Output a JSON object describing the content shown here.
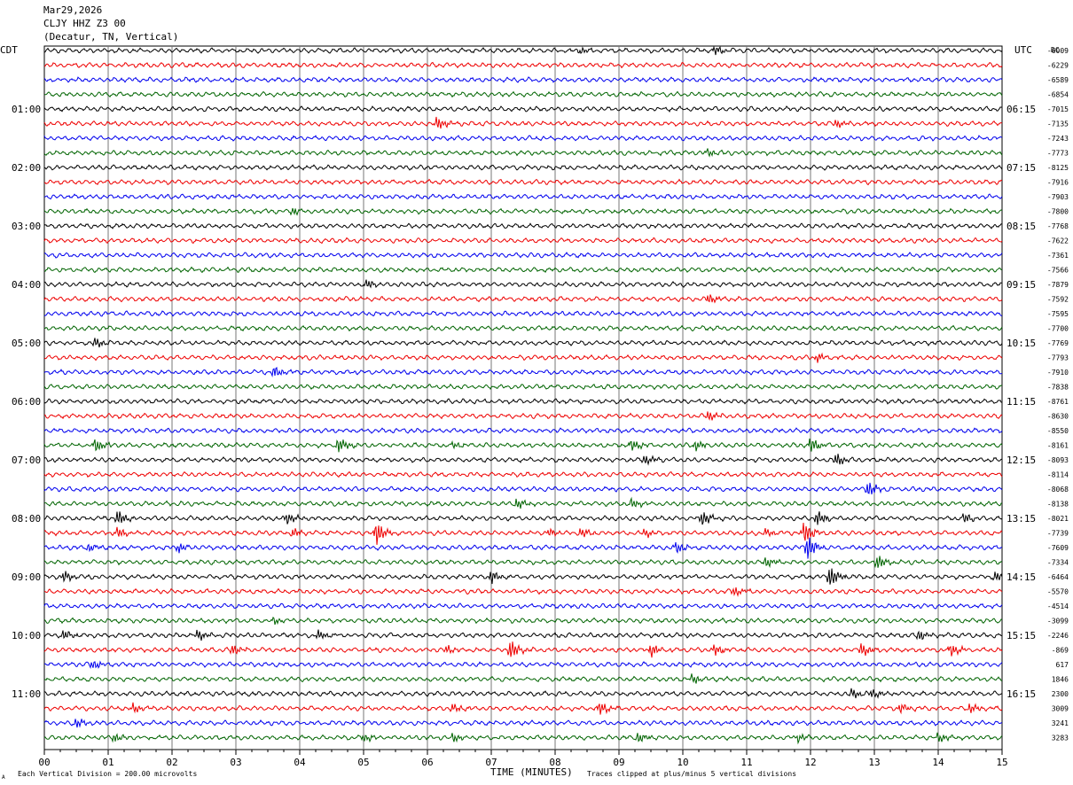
{
  "header": {
    "date": "Mar29,2026",
    "station": "CLJY HHZ Z3 00",
    "location": "(Decatur, TN, Vertical)"
  },
  "left_tz": "CDT",
  "right_tz": "UTC",
  "dc_label": "DC",
  "footer": {
    "scale_note": "Each Vertical Division =  200.00 microvolts",
    "clip_note": "Traces clipped at plus/minus 5 vertical divisions",
    "corner_mark": "A"
  },
  "chart_data": {
    "type": "line",
    "title": "",
    "xlabel": "TIME (MINUTES)",
    "ylabel": "",
    "x_ticks": [
      "00",
      "01",
      "02",
      "03",
      "04",
      "05",
      "06",
      "07",
      "08",
      "09",
      "10",
      "11",
      "12",
      "13",
      "14",
      "15"
    ],
    "xlim": [
      0,
      15
    ],
    "trace_count": 48,
    "trace_interval_minutes": 15,
    "trace_colors": [
      "#000000",
      "#ee0000",
      "#0000ee",
      "#006400"
    ],
    "left_time_labels": [
      "01:00",
      "02:00",
      "03:00",
      "04:00",
      "05:00",
      "06:00",
      "07:00",
      "08:00",
      "09:00",
      "10:00",
      "11:00"
    ],
    "right_time_labels": [
      "06:15",
      "07:15",
      "08:15",
      "09:15",
      "10:15",
      "11:15",
      "12:15",
      "13:15",
      "14:15",
      "15:15",
      "16:15"
    ],
    "dc_offsets": [
      "-6009",
      "-6229",
      "-6589",
      "-6854",
      "-7015",
      "-7135",
      "-7243",
      "-7773",
      "-8125",
      "-7916",
      "-7903",
      "-7800",
      "-7768",
      "-7622",
      "-7361",
      "-7566",
      "-7879",
      "-7592",
      "-7595",
      "-7700",
      "-7769",
      "-7793",
      "-7910",
      "-7838",
      "-8761",
      "-8630",
      "-8550",
      "-8161",
      "-8093",
      "-8114",
      "-8068",
      "-8138",
      "-8021",
      "-7739",
      "-7609",
      "-7334",
      "-6464",
      "-5570",
      "-4514",
      "-3099",
      "-2246",
      "-869",
      "617",
      "1846",
      "2300",
      "3009",
      "3241",
      "3283"
    ],
    "events": [
      {
        "trace": 0,
        "minute": 10.5,
        "amp": 1.2
      },
      {
        "trace": 0,
        "minute": 8.4,
        "amp": 0.8
      },
      {
        "trace": 5,
        "minute": 6.15,
        "amp": 1.8
      },
      {
        "trace": 5,
        "minute": 12.4,
        "amp": 1.2
      },
      {
        "trace": 7,
        "minute": 10.4,
        "amp": 1.0
      },
      {
        "trace": 11,
        "minute": 3.9,
        "amp": 1.0
      },
      {
        "trace": 16,
        "minute": 5.05,
        "amp": 1.2
      },
      {
        "trace": 17,
        "minute": 10.4,
        "amp": 1.4
      },
      {
        "trace": 20,
        "minute": 0.8,
        "amp": 1.4
      },
      {
        "trace": 21,
        "minute": 12.1,
        "amp": 1.2
      },
      {
        "trace": 22,
        "minute": 3.6,
        "amp": 1.6
      },
      {
        "trace": 25,
        "minute": 10.4,
        "amp": 1.4
      },
      {
        "trace": 27,
        "minute": 0.8,
        "amp": 1.8
      },
      {
        "trace": 27,
        "minute": 4.6,
        "amp": 2.0
      },
      {
        "trace": 27,
        "minute": 6.4,
        "amp": 1.0
      },
      {
        "trace": 27,
        "minute": 9.2,
        "amp": 1.4
      },
      {
        "trace": 27,
        "minute": 10.2,
        "amp": 1.4
      },
      {
        "trace": 27,
        "minute": 12.0,
        "amp": 2.0
      },
      {
        "trace": 28,
        "minute": 9.4,
        "amp": 1.4
      },
      {
        "trace": 28,
        "minute": 12.4,
        "amp": 1.8
      },
      {
        "trace": 30,
        "minute": 12.9,
        "amp": 2.2
      },
      {
        "trace": 31,
        "minute": 7.4,
        "amp": 1.4
      },
      {
        "trace": 31,
        "minute": 9.2,
        "amp": 1.4
      },
      {
        "trace": 32,
        "minute": 1.15,
        "amp": 2.0
      },
      {
        "trace": 32,
        "minute": 3.8,
        "amp": 1.6
      },
      {
        "trace": 32,
        "minute": 10.3,
        "amp": 2.0
      },
      {
        "trace": 32,
        "minute": 12.1,
        "amp": 2.0
      },
      {
        "trace": 32,
        "minute": 14.4,
        "amp": 1.2
      },
      {
        "trace": 33,
        "minute": 1.15,
        "amp": 1.4
      },
      {
        "trace": 33,
        "minute": 3.9,
        "amp": 1.2
      },
      {
        "trace": 33,
        "minute": 5.2,
        "amp": 3.2
      },
      {
        "trace": 33,
        "minute": 7.9,
        "amp": 1.0
      },
      {
        "trace": 33,
        "minute": 8.4,
        "amp": 1.2
      },
      {
        "trace": 33,
        "minute": 9.4,
        "amp": 1.2
      },
      {
        "trace": 33,
        "minute": 11.3,
        "amp": 1.0
      },
      {
        "trace": 33,
        "minute": 11.9,
        "amp": 3.0
      },
      {
        "trace": 34,
        "minute": 0.7,
        "amp": 1.2
      },
      {
        "trace": 34,
        "minute": 2.1,
        "amp": 1.4
      },
      {
        "trace": 34,
        "minute": 9.9,
        "amp": 1.6
      },
      {
        "trace": 34,
        "minute": 11.95,
        "amp": 3.4
      },
      {
        "trace": 35,
        "minute": 11.3,
        "amp": 1.4
      },
      {
        "trace": 35,
        "minute": 13.05,
        "amp": 2.0
      },
      {
        "trace": 36,
        "minute": 0.3,
        "amp": 1.6
      },
      {
        "trace": 36,
        "minute": 7.0,
        "amp": 1.8
      },
      {
        "trace": 36,
        "minute": 12.3,
        "amp": 3.0
      },
      {
        "trace": 36,
        "minute": 14.9,
        "amp": 1.2
      },
      {
        "trace": 37,
        "minute": 10.8,
        "amp": 1.2
      },
      {
        "trace": 39,
        "minute": 3.6,
        "amp": 1.0
      },
      {
        "trace": 40,
        "minute": 0.3,
        "amp": 1.2
      },
      {
        "trace": 40,
        "minute": 2.4,
        "amp": 1.4
      },
      {
        "trace": 40,
        "minute": 4.3,
        "amp": 1.2
      },
      {
        "trace": 40,
        "minute": 13.7,
        "amp": 1.4
      },
      {
        "trace": 41,
        "minute": 2.95,
        "amp": 1.4
      },
      {
        "trace": 41,
        "minute": 6.3,
        "amp": 1.2
      },
      {
        "trace": 41,
        "minute": 7.3,
        "amp": 2.6
      },
      {
        "trace": 41,
        "minute": 9.5,
        "amp": 1.8
      },
      {
        "trace": 41,
        "minute": 10.5,
        "amp": 1.4
      },
      {
        "trace": 41,
        "minute": 12.8,
        "amp": 1.8
      },
      {
        "trace": 41,
        "minute": 14.2,
        "amp": 1.8
      },
      {
        "trace": 42,
        "minute": 0.75,
        "amp": 1.2
      },
      {
        "trace": 43,
        "minute": 10.15,
        "amp": 1.2
      },
      {
        "trace": 44,
        "minute": 12.65,
        "amp": 1.4
      },
      {
        "trace": 44,
        "minute": 12.95,
        "amp": 1.4
      },
      {
        "trace": 45,
        "minute": 1.4,
        "amp": 1.2
      },
      {
        "trace": 45,
        "minute": 6.4,
        "amp": 1.2
      },
      {
        "trace": 45,
        "minute": 8.7,
        "amp": 1.8
      },
      {
        "trace": 45,
        "minute": 13.4,
        "amp": 1.2
      },
      {
        "trace": 45,
        "minute": 14.5,
        "amp": 1.4
      },
      {
        "trace": 46,
        "minute": 0.5,
        "amp": 1.2
      },
      {
        "trace": 47,
        "minute": 1.1,
        "amp": 1.2
      },
      {
        "trace": 47,
        "minute": 5.0,
        "amp": 1.2
      },
      {
        "trace": 47,
        "minute": 6.4,
        "amp": 1.2
      },
      {
        "trace": 47,
        "minute": 9.3,
        "amp": 1.4
      },
      {
        "trace": 47,
        "minute": 11.8,
        "amp": 1.2
      },
      {
        "trace": 47,
        "minute": 14.0,
        "amp": 1.2
      }
    ]
  }
}
